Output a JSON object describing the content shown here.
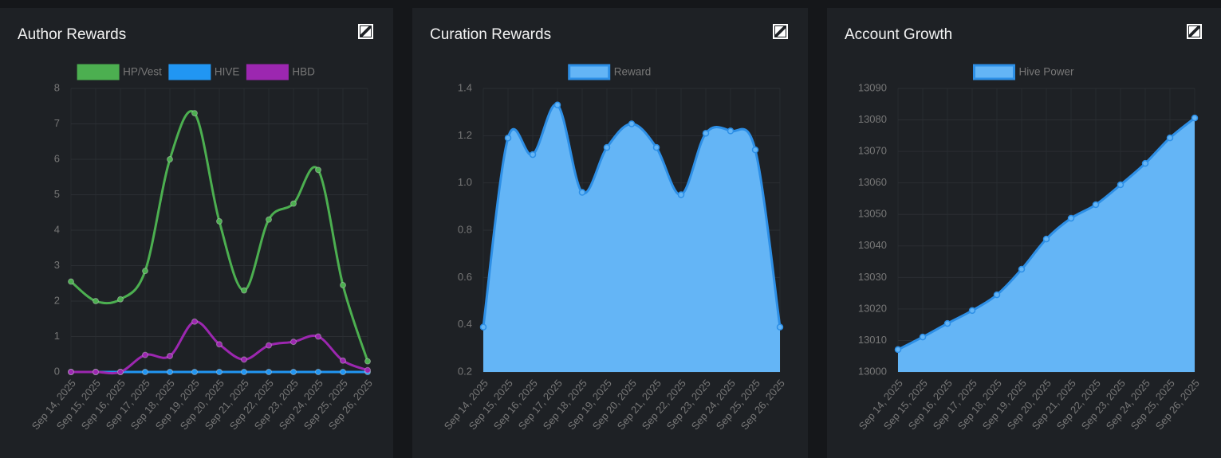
{
  "chart_data": [
    {
      "type": "line",
      "title": "Author Rewards",
      "categories": [
        "Sep 14, 2025",
        "Sep 15, 2025",
        "Sep 16, 2025",
        "Sep 17, 2025",
        "Sep 18, 2025",
        "Sep 19, 2025",
        "Sep 20, 2025",
        "Sep 21, 2025",
        "Sep 22, 2025",
        "Sep 23, 2025",
        "Sep 24, 2025",
        "Sep 25, 2025",
        "Sep 26, 2025"
      ],
      "series": [
        {
          "name": "HP/Vest",
          "color": "#4caf50",
          "values": [
            2.55,
            2.0,
            2.05,
            2.85,
            6.0,
            7.3,
            4.25,
            2.3,
            4.3,
            4.75,
            5.7,
            2.45,
            0.3
          ]
        },
        {
          "name": "HIVE",
          "color": "#2196f3",
          "values": [
            0,
            0,
            0,
            0,
            0,
            0,
            0,
            0,
            0,
            0,
            0,
            0,
            0
          ]
        },
        {
          "name": "HBD",
          "color": "#9c27b0",
          "values": [
            0,
            0,
            0,
            0.48,
            0.45,
            1.42,
            0.78,
            0.35,
            0.75,
            0.85,
            1.0,
            0.32,
            0.05
          ]
        }
      ],
      "ylim": [
        0,
        8
      ],
      "yticks": [
        0,
        1,
        2,
        3,
        4,
        5,
        6,
        7,
        8
      ],
      "grid": true
    },
    {
      "type": "area",
      "title": "Curation Rewards",
      "categories": [
        "Sep 14, 2025",
        "Sep 15, 2025",
        "Sep 16, 2025",
        "Sep 17, 2025",
        "Sep 18, 2025",
        "Sep 19, 2025",
        "Sep 20, 2025",
        "Sep 21, 2025",
        "Sep 22, 2025",
        "Sep 23, 2025",
        "Sep 24, 2025",
        "Sep 25, 2025",
        "Sep 26, 2025"
      ],
      "series": [
        {
          "name": "Reward",
          "color": "#2d8fe6",
          "values": [
            0.39,
            1.19,
            1.12,
            1.33,
            0.96,
            1.15,
            1.25,
            1.15,
            0.95,
            1.21,
            1.22,
            1.14,
            0.39
          ]
        }
      ],
      "ylim": [
        0.2,
        1.4
      ],
      "yticks": [
        0.2,
        0.4,
        0.6,
        0.8,
        {
          "value": 1,
          "label": "1.0"
        },
        1.2,
        1.4
      ],
      "grid": true
    },
    {
      "type": "area",
      "title": "Account Growth",
      "categories": [
        "Sep 14, 2025",
        "Sep 15, 2025",
        "Sep 16, 2025",
        "Sep 17, 2025",
        "Sep 18, 2025",
        "Sep 19, 2025",
        "Sep 20, 2025",
        "Sep 21, 2025",
        "Sep 22, 2025",
        "Sep 23, 2025",
        "Sep 24, 2025",
        "Sep 25, 2025",
        "Sep 26, 2025"
      ],
      "series": [
        {
          "name": "Hive Power",
          "color": "#2d8fe6",
          "values": [
            13007.1,
            13011.1,
            13015.4,
            13019.5,
            13024.5,
            13032.6,
            13042.2,
            13048.8,
            13053.1,
            13059.4,
            13066.2,
            13074.3,
            13080.6
          ]
        }
      ],
      "ylim": [
        13000,
        13090
      ],
      "yticks": [
        13000,
        13010,
        13020,
        13030,
        13040,
        13050,
        13060,
        13070,
        13080,
        13090
      ],
      "grid": true
    }
  ]
}
